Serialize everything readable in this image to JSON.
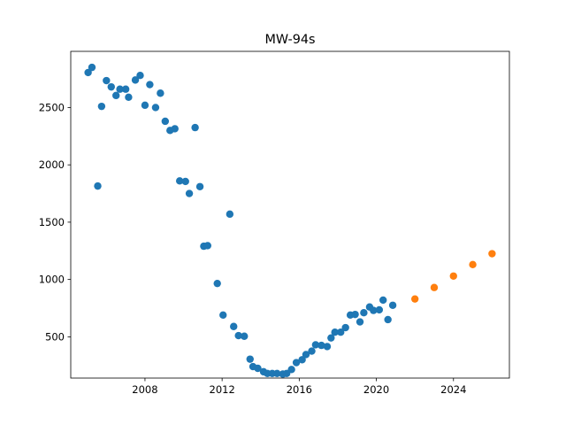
{
  "chart_data": {
    "type": "scatter",
    "title": "MW-94s",
    "xlabel": "",
    "ylabel": "",
    "xlim": [
      2004.15,
      2026.9
    ],
    "ylim": [
      140,
      2990
    ],
    "x_ticks": [
      2008,
      2012,
      2016,
      2020,
      2024
    ],
    "y_ticks": [
      500,
      1000,
      1500,
      2000,
      2500
    ],
    "grid": false,
    "series": [
      {
        "color": "#1f77b4",
        "points": [
          [
            2005.05,
            2805
          ],
          [
            2005.25,
            2850
          ],
          [
            2005.55,
            1815
          ],
          [
            2005.75,
            2510
          ],
          [
            2006.0,
            2735
          ],
          [
            2006.25,
            2680
          ],
          [
            2006.5,
            2605
          ],
          [
            2006.7,
            2660
          ],
          [
            2007.0,
            2660
          ],
          [
            2007.15,
            2590
          ],
          [
            2007.5,
            2740
          ],
          [
            2007.75,
            2780
          ],
          [
            2008.0,
            2520
          ],
          [
            2008.25,
            2700
          ],
          [
            2008.55,
            2500
          ],
          [
            2008.8,
            2625
          ],
          [
            2009.05,
            2380
          ],
          [
            2009.3,
            2300
          ],
          [
            2009.55,
            2315
          ],
          [
            2009.8,
            1860
          ],
          [
            2010.1,
            1855
          ],
          [
            2010.3,
            1750
          ],
          [
            2010.6,
            2325
          ],
          [
            2010.85,
            1810
          ],
          [
            2011.05,
            1290
          ],
          [
            2011.25,
            1295
          ],
          [
            2011.75,
            965
          ],
          [
            2012.05,
            690
          ],
          [
            2012.4,
            1570
          ],
          [
            2012.6,
            590
          ],
          [
            2012.85,
            510
          ],
          [
            2013.15,
            505
          ],
          [
            2013.45,
            305
          ],
          [
            2013.6,
            240
          ],
          [
            2013.85,
            225
          ],
          [
            2014.15,
            195
          ],
          [
            2014.35,
            180
          ],
          [
            2014.6,
            180
          ],
          [
            2014.85,
            180
          ],
          [
            2015.15,
            175
          ],
          [
            2015.35,
            180
          ],
          [
            2015.6,
            215
          ],
          [
            2015.85,
            275
          ],
          [
            2016.15,
            300
          ],
          [
            2016.35,
            345
          ],
          [
            2016.65,
            375
          ],
          [
            2016.85,
            430
          ],
          [
            2017.15,
            425
          ],
          [
            2017.45,
            415
          ],
          [
            2017.65,
            490
          ],
          [
            2017.85,
            540
          ],
          [
            2018.15,
            540
          ],
          [
            2018.4,
            580
          ],
          [
            2018.65,
            690
          ],
          [
            2018.9,
            695
          ],
          [
            2019.15,
            630
          ],
          [
            2019.35,
            710
          ],
          [
            2019.65,
            760
          ],
          [
            2019.85,
            730
          ],
          [
            2020.15,
            735
          ],
          [
            2020.35,
            820
          ],
          [
            2020.6,
            650
          ],
          [
            2020.85,
            775
          ]
        ]
      },
      {
        "color": "#ff7f0e",
        "points": [
          [
            2022.0,
            830
          ],
          [
            2023.0,
            930
          ],
          [
            2024.0,
            1030
          ],
          [
            2025.0,
            1130
          ],
          [
            2026.0,
            1225
          ]
        ]
      }
    ]
  }
}
